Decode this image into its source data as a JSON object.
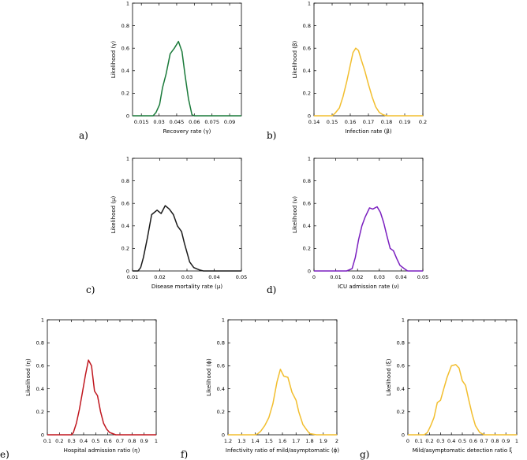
{
  "chart_data": [
    {
      "panel": "a)",
      "type": "line",
      "color": "#1a7a3a",
      "xlabel": "Recovery rate (γ)",
      "ylabel": "Likelihood (γ)",
      "xlim": [
        0.0075,
        0.1
      ],
      "ylim": [
        0,
        1
      ],
      "xticks": [
        0.015,
        0.03,
        0.045,
        0.06,
        0.075,
        0.09
      ],
      "xtick_labels": [
        "0.015",
        "0.03",
        "0.045",
        "0.06",
        "0.075",
        "0.09"
      ],
      "yticks": [
        0,
        0.2,
        0.4,
        0.6,
        0.8,
        1
      ],
      "ytick_labels": [
        "0",
        "0.2",
        "0.4",
        "0.6",
        "0.8",
        "1"
      ],
      "x": [
        0.0075,
        0.015,
        0.02,
        0.025,
        0.0275,
        0.0305,
        0.033,
        0.036,
        0.0395,
        0.043,
        0.0465,
        0.0495,
        0.052,
        0.055,
        0.058,
        0.06,
        0.065,
        0.075,
        0.09,
        0.1
      ],
      "y": [
        0,
        0,
        0,
        0,
        0.03,
        0.1,
        0.25,
        0.37,
        0.55,
        0.6,
        0.66,
        0.57,
        0.37,
        0.15,
        0.01,
        0,
        0,
        0,
        0,
        0
      ]
    },
    {
      "panel": "b)",
      "type": "line",
      "color": "#f2be2e",
      "xlabel": "Infection rate (β)",
      "ylabel": "Likelihood (β)",
      "xlim": [
        0.14,
        0.2
      ],
      "ylim": [
        0,
        1
      ],
      "xticks": [
        0.14,
        0.15,
        0.16,
        0.17,
        0.18,
        0.19,
        0.2
      ],
      "xtick_labels": [
        "0.14",
        "0.15",
        "0.16",
        "0.17",
        "0.18",
        "0.19",
        "0.2"
      ],
      "yticks": [
        0,
        0.2,
        0.4,
        0.6,
        0.8,
        1
      ],
      "ytick_labels": [
        "0",
        "0.2",
        "0.4",
        "0.6",
        "0.8",
        "1"
      ],
      "x": [
        0.14,
        0.15,
        0.1515,
        0.154,
        0.156,
        0.158,
        0.16,
        0.1615,
        0.163,
        0.1645,
        0.166,
        0.168,
        0.17,
        0.172,
        0.174,
        0.176,
        0.178,
        0.18,
        0.19,
        0.2
      ],
      "y": [
        0,
        0,
        0.02,
        0.07,
        0.17,
        0.3,
        0.45,
        0.56,
        0.6,
        0.58,
        0.5,
        0.4,
        0.28,
        0.17,
        0.08,
        0.03,
        0.01,
        0,
        0,
        0
      ]
    },
    {
      "panel": "c)",
      "type": "line",
      "color": "#1a1a1a",
      "xlabel": "Disease mortality rate (μ)",
      "ylabel": "Likelihood (μ)",
      "xlim": [
        0.01,
        0.05
      ],
      "ylim": [
        0,
        1
      ],
      "xticks": [
        0.01,
        0.02,
        0.03,
        0.04,
        0.05
      ],
      "xtick_labels": [
        "0.01",
        "0.02",
        "0.03",
        "0.04",
        "0.05"
      ],
      "yticks": [
        0,
        0.2,
        0.4,
        0.6,
        0.8,
        1
      ],
      "ytick_labels": [
        "0",
        "0.2",
        "0.4",
        "0.6",
        "0.8",
        "1"
      ],
      "x": [
        0.01,
        0.012,
        0.013,
        0.014,
        0.0155,
        0.017,
        0.019,
        0.0205,
        0.022,
        0.0235,
        0.025,
        0.0265,
        0.028,
        0.029,
        0.031,
        0.0325,
        0.0345,
        0.036,
        0.038,
        0.05
      ],
      "y": [
        0,
        0,
        0.03,
        0.12,
        0.3,
        0.5,
        0.54,
        0.51,
        0.58,
        0.55,
        0.5,
        0.4,
        0.35,
        0.25,
        0.08,
        0.03,
        0.01,
        0,
        0,
        0
      ]
    },
    {
      "panel": "d)",
      "type": "line",
      "color": "#7a1fbf",
      "xlabel": "ICU admission rate (ν)",
      "ylabel": "Likelihood (ν)",
      "xlim": [
        0,
        0.05
      ],
      "ylim": [
        0,
        1
      ],
      "xticks": [
        0,
        0.01,
        0.02,
        0.03,
        0.04,
        0.05
      ],
      "xtick_labels": [
        "0",
        "0.01",
        "0.02",
        "0.03",
        "0.04",
        "0.05"
      ],
      "yticks": [
        0,
        0.2,
        0.4,
        0.6,
        0.8,
        1
      ],
      "ytick_labels": [
        "0",
        "0.2",
        "0.4",
        "0.6",
        "0.8",
        "1"
      ],
      "x": [
        0,
        0.015,
        0.0175,
        0.019,
        0.0205,
        0.022,
        0.0235,
        0.0255,
        0.027,
        0.029,
        0.0305,
        0.032,
        0.0335,
        0.035,
        0.0365,
        0.038,
        0.0395,
        0.0415,
        0.043,
        0.05
      ],
      "y": [
        0,
        0,
        0.02,
        0.12,
        0.28,
        0.4,
        0.48,
        0.56,
        0.55,
        0.57,
        0.52,
        0.43,
        0.31,
        0.2,
        0.18,
        0.11,
        0.05,
        0.02,
        0,
        0
      ]
    },
    {
      "panel": "e)",
      "type": "line",
      "color": "#c0171f",
      "xlabel": "Hospital admission ratio (η)",
      "ylabel": "Likelihood (η)",
      "xlim": [
        0.1,
        1
      ],
      "ylim": [
        0,
        1
      ],
      "xticks": [
        0.1,
        0.2,
        0.3,
        0.4,
        0.5,
        0.6,
        0.7,
        0.8,
        0.9,
        1
      ],
      "xtick_labels": [
        "0.1",
        "0.2",
        "0.3",
        "0.4",
        "0.5",
        "0.6",
        "0.7",
        "0.8",
        "0.9",
        "1"
      ],
      "yticks": [
        0,
        0.2,
        0.4,
        0.6,
        0.8,
        1
      ],
      "ytick_labels": [
        "0",
        "0.2",
        "0.4",
        "0.6",
        "0.8",
        "1"
      ],
      "x": [
        0.1,
        0.3,
        0.315,
        0.34,
        0.365,
        0.39,
        0.415,
        0.44,
        0.465,
        0.49,
        0.515,
        0.54,
        0.565,
        0.59,
        0.615,
        0.64,
        0.665,
        0.7,
        0.85,
        1
      ],
      "y": [
        0,
        0,
        0.02,
        0.1,
        0.22,
        0.37,
        0.52,
        0.65,
        0.6,
        0.38,
        0.34,
        0.2,
        0.1,
        0.05,
        0.02,
        0.01,
        0,
        0,
        0,
        0
      ]
    },
    {
      "panel": "f)",
      "type": "line",
      "color": "#f2be2e",
      "xlabel": "Infectivity ratio of mild/asymptomatic (ϕ)",
      "ylabel": "Likelihood (ϕ)",
      "xlim": [
        1.2,
        2
      ],
      "ylim": [
        0,
        1
      ],
      "xticks": [
        1.2,
        1.3,
        1.4,
        1.5,
        1.6,
        1.7,
        1.8,
        1.9,
        2
      ],
      "xtick_labels": [
        "1.2",
        "1.3",
        "1.4",
        "1.5",
        "1.6",
        "1.7",
        "1.8",
        "1.9",
        "2"
      ],
      "yticks": [
        0,
        0.2,
        0.4,
        0.6,
        0.8,
        1
      ],
      "ytick_labels": [
        "0",
        "0.2",
        "0.4",
        "0.6",
        "0.8",
        "1"
      ],
      "x": [
        1.2,
        1.4,
        1.42,
        1.44,
        1.47,
        1.5,
        1.53,
        1.56,
        1.585,
        1.61,
        1.64,
        1.67,
        1.7,
        1.72,
        1.75,
        1.78,
        1.8,
        1.85,
        1.9,
        2
      ],
      "y": [
        0,
        0,
        0.01,
        0.03,
        0.08,
        0.15,
        0.27,
        0.46,
        0.57,
        0.51,
        0.5,
        0.37,
        0.3,
        0.2,
        0.09,
        0.04,
        0.01,
        0,
        0,
        0
      ]
    },
    {
      "panel": "g)",
      "type": "line",
      "color": "#f2be2e",
      "xlabel": "Mild/asymptomatic detection ratio ξ",
      "ylabel": "Likelihood (ξ)",
      "xlim": [
        0,
        1
      ],
      "ylim": [
        0,
        1
      ],
      "xticks": [
        0,
        0.1,
        0.2,
        0.3,
        0.4,
        0.5,
        0.6,
        0.7,
        0.8,
        0.9,
        1
      ],
      "xtick_labels": [
        "0",
        "0.1",
        "0.2",
        "0.3",
        "0.4",
        "0.5",
        "0.6",
        "0.7",
        "0.8",
        "0.9",
        "1"
      ],
      "yticks": [
        0,
        0.2,
        0.4,
        0.6,
        0.8,
        1
      ],
      "ytick_labels": [
        "0",
        "0.2",
        "0.4",
        "0.6",
        "0.8",
        "1"
      ],
      "x": [
        0,
        0.15,
        0.18,
        0.21,
        0.24,
        0.27,
        0.3,
        0.33,
        0.36,
        0.4,
        0.44,
        0.47,
        0.5,
        0.53,
        0.56,
        0.59,
        0.62,
        0.66,
        0.7,
        1
      ],
      "y": [
        0,
        0,
        0.02,
        0.08,
        0.15,
        0.28,
        0.3,
        0.4,
        0.5,
        0.6,
        0.61,
        0.58,
        0.47,
        0.43,
        0.3,
        0.18,
        0.08,
        0.02,
        0,
        0
      ]
    }
  ]
}
